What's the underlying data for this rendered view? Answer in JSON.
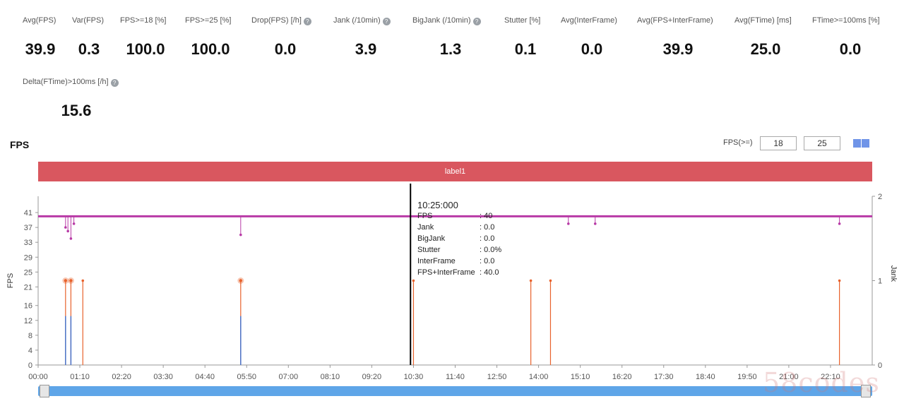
{
  "metrics_row1": [
    {
      "label": "Avg(FPS)",
      "value": "39.9",
      "info": false
    },
    {
      "label": "Var(FPS)",
      "value": "0.3",
      "info": false
    },
    {
      "label": "FPS>=18 [%]",
      "value": "100.0",
      "info": false
    },
    {
      "label": "FPS>=25 [%]",
      "value": "100.0",
      "info": false
    },
    {
      "label": "Drop(FPS) [/h]",
      "value": "0.0",
      "info": true
    },
    {
      "label": "Jank (/10min)",
      "value": "3.9",
      "info": true
    },
    {
      "label": "BigJank (/10min)",
      "value": "1.3",
      "info": true
    },
    {
      "label": "Stutter [%]",
      "value": "0.1",
      "info": false
    },
    {
      "label": "Avg(InterFrame)",
      "value": "0.0",
      "info": false
    },
    {
      "label": "Avg(FPS+InterFrame)",
      "value": "39.9",
      "info": false
    },
    {
      "label": "Avg(FTime) [ms]",
      "value": "25.0",
      "info": false
    },
    {
      "label": "FTime>=100ms [%]",
      "value": "0.0",
      "info": false
    }
  ],
  "metrics_row2": [
    {
      "label": "Delta(FTime)>100ms [/h]",
      "value": "15.6",
      "info": true
    }
  ],
  "chart_title": "FPS",
  "fps_controls": {
    "label": "FPS(>=)",
    "threshold_low": "18",
    "threshold_high": "25"
  },
  "label_band_text": "label1",
  "tooltip": {
    "time": "10:25:000",
    "rows": [
      {
        "name": "FPS",
        "value": ": 40"
      },
      {
        "name": "Jank",
        "value": ": 0.0"
      },
      {
        "name": "BigJank",
        "value": ": 0.0"
      },
      {
        "name": "Stutter",
        "value": ": 0.0%"
      },
      {
        "name": "InterFrame",
        "value": ": 0.0"
      },
      {
        "name": "FPS+InterFrame",
        "value": ": 40.0"
      }
    ]
  },
  "watermark": "58codes",
  "colors": {
    "fps_line": "#b83aa6",
    "jank_line": "#e8622c",
    "bigjank_line": "#4a73c9",
    "band": "#d9575f",
    "scrollbar": "#5ea5e8"
  },
  "chart_data": {
    "type": "line",
    "title": "FPS",
    "ylabel": "FPS",
    "y2label": "Jank",
    "ylim": [
      0,
      45
    ],
    "y_ticks": [
      0,
      4,
      8,
      12,
      16,
      21,
      25,
      29,
      33,
      37,
      41
    ],
    "y2lim": [
      0,
      2
    ],
    "y2_ticks": [
      0,
      1,
      2
    ],
    "x_range_seconds": [
      0,
      1400
    ],
    "x_tick_labels": [
      "00:00",
      "01:10",
      "02:20",
      "03:30",
      "04:40",
      "05:50",
      "07:00",
      "08:10",
      "09:20",
      "10:30",
      "11:40",
      "12:50",
      "14:00",
      "15:10",
      "16:20",
      "17:30",
      "18:40",
      "19:50",
      "21:00",
      "22:10"
    ],
    "cursor_time": "10:25",
    "fps_baseline": 40,
    "fps_dips": [
      [
        46,
        37
      ],
      [
        50,
        36
      ],
      [
        55,
        34
      ],
      [
        60,
        38
      ],
      [
        340,
        35
      ],
      [
        890,
        38
      ],
      [
        935,
        38
      ],
      [
        1345,
        38
      ]
    ],
    "series": [
      {
        "name": "Jank",
        "axis": "right",
        "events": [
          [
            46,
            1
          ],
          [
            55,
            1
          ],
          [
            75,
            1
          ],
          [
            340,
            1
          ],
          [
            630,
            1
          ],
          [
            827,
            1
          ],
          [
            860,
            1
          ],
          [
            1345,
            1
          ]
        ]
      },
      {
        "name": "BigJank",
        "axis": "right",
        "events": [
          [
            46,
            1
          ],
          [
            55,
            1
          ],
          [
            340,
            1
          ]
        ]
      }
    ]
  }
}
